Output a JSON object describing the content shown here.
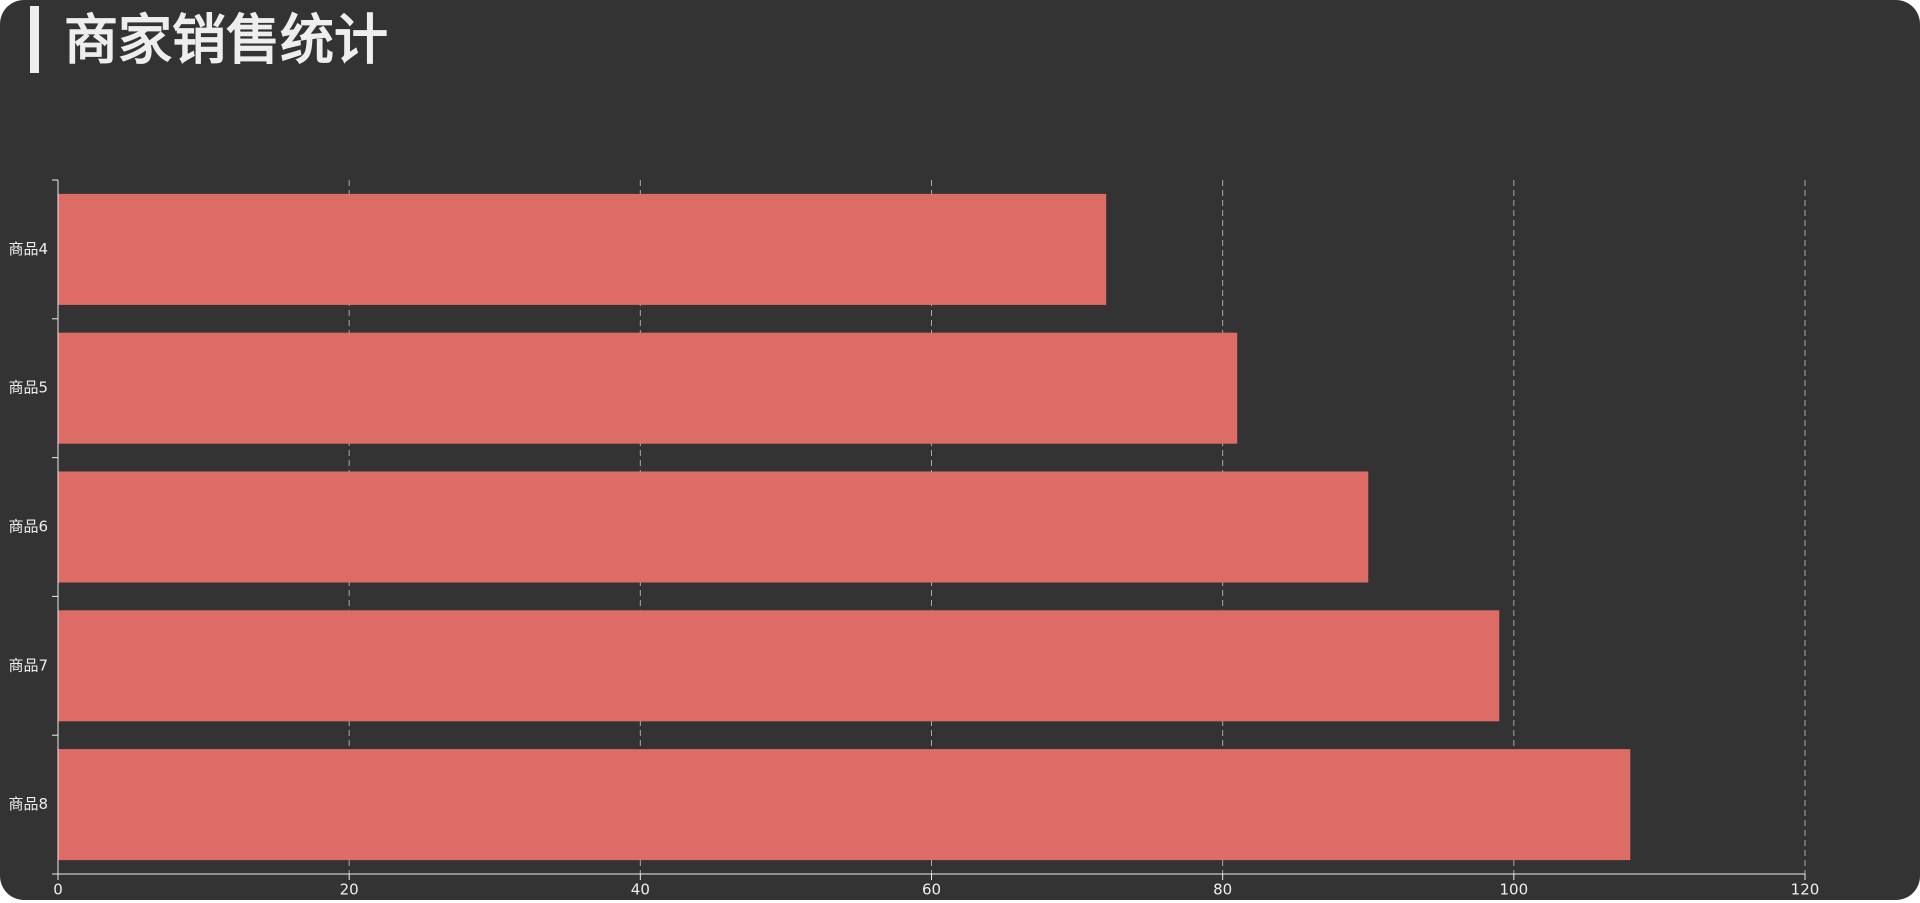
{
  "chart_data": {
    "type": "bar",
    "orientation": "horizontal",
    "title": "商家销售统计",
    "categories": [
      "商品4",
      "商品5",
      "商品6",
      "商品7",
      "商品8"
    ],
    "values": [
      72,
      81,
      90,
      99,
      108
    ],
    "color": "#dd6b66",
    "xlim": [
      0,
      120
    ],
    "xticks": [
      0,
      20,
      40,
      60,
      80,
      100,
      120
    ],
    "grid": true
  }
}
